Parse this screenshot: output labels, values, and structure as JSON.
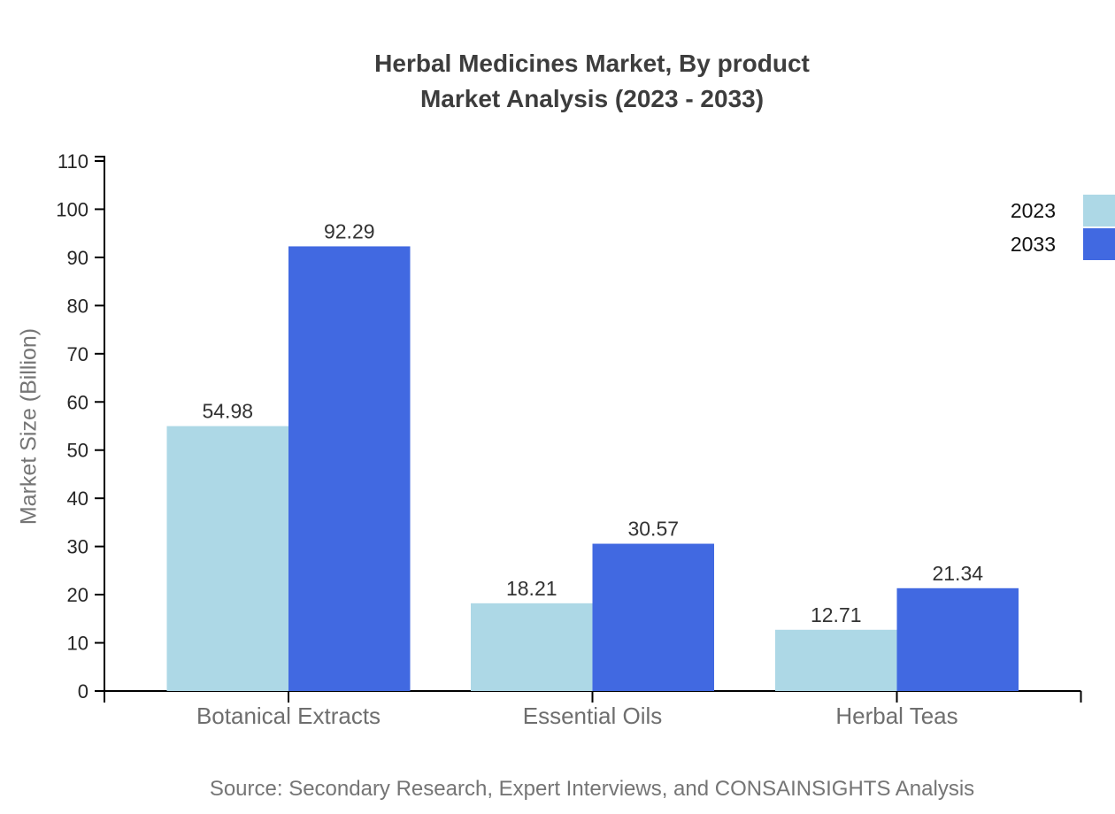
{
  "title": {
    "line1": "Herbal Medicines Market, By product",
    "line2": "Market Analysis (2023 - 2033)"
  },
  "source": "Source: Secondary Research, Expert Interviews, and CONSAINSIGHTS Analysis",
  "legend": [
    {
      "label": "2023",
      "color": "#add8e6"
    },
    {
      "label": "2033",
      "color": "#4169e1"
    }
  ],
  "chart_data": {
    "type": "bar",
    "title": "Herbal Medicines Market, By product Market Analysis (2023 - 2033)",
    "categories": [
      "Botanical Extracts",
      "Essential Oils",
      "Herbal Teas"
    ],
    "series": [
      {
        "name": "2023",
        "color": "#add8e6",
        "values": [
          54.98,
          18.21,
          12.71
        ]
      },
      {
        "name": "2033",
        "color": "#4169e1",
        "values": [
          92.29,
          30.57,
          21.34
        ]
      }
    ],
    "value_labels": [
      "54.98",
      "92.29",
      "18.21",
      "30.57",
      "12.71",
      "21.34"
    ],
    "xlabel": "",
    "ylabel": "Market Size (Billion)",
    "ylim": [
      0,
      110
    ],
    "ytick_step": 10,
    "yticks": [
      0,
      10,
      20,
      30,
      40,
      50,
      60,
      70,
      80,
      90,
      100,
      110
    ],
    "grid": false,
    "legend_position": "top-right"
  },
  "colors": {
    "axis": "#000000",
    "tick_label": "#262626",
    "value_label": "#333333",
    "category_label": "#6e6e6e",
    "muted": "#757575",
    "title": "#3d3d3d",
    "background": "#ffffff"
  }
}
